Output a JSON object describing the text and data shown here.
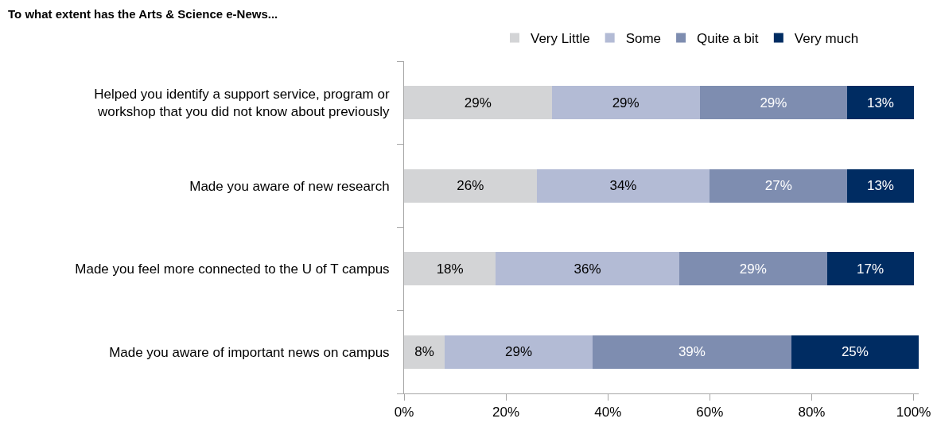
{
  "chart_data": {
    "type": "bar",
    "orientation": "horizontal",
    "stacked": true,
    "title": "To what extent has the Arts & Science e-News...",
    "categories": [
      "Helped you identify a support service, program or workshop that you did not know about previously",
      "Made you aware of new research",
      "Made you feel more connected to the U of T campus",
      "Made you aware of important news on campus"
    ],
    "series": [
      {
        "name": "Very Little",
        "color": "#d3d4d6",
        "values": [
          29,
          26,
          18,
          8
        ],
        "value_labels": [
          "29%",
          "26%",
          "18%",
          "8%"
        ]
      },
      {
        "name": "Some",
        "color": "#b3bbd5",
        "values": [
          29,
          34,
          36,
          29
        ],
        "value_labels": [
          "29%",
          "34%",
          "36%",
          "29%"
        ]
      },
      {
        "name": "Quite a bit",
        "color": "#7e8db0",
        "values": [
          29,
          27,
          29,
          39
        ],
        "value_labels": [
          "29%",
          "27%",
          "29%",
          "39%"
        ]
      },
      {
        "name": "Very much",
        "color": "#002c62",
        "values": [
          13,
          13,
          17,
          25
        ],
        "value_labels": [
          "13%",
          "13%",
          "17%",
          "25%"
        ]
      }
    ],
    "xlim": [
      0,
      101
    ],
    "xticks": [
      {
        "value": 0,
        "label": "0%"
      },
      {
        "value": 20,
        "label": "20%"
      },
      {
        "value": 40,
        "label": "40%"
      },
      {
        "value": 60,
        "label": "60%"
      },
      {
        "value": 80,
        "label": "80%"
      },
      {
        "value": 100,
        "label": "100%"
      }
    ],
    "grid": false,
    "legend": "top right"
  }
}
